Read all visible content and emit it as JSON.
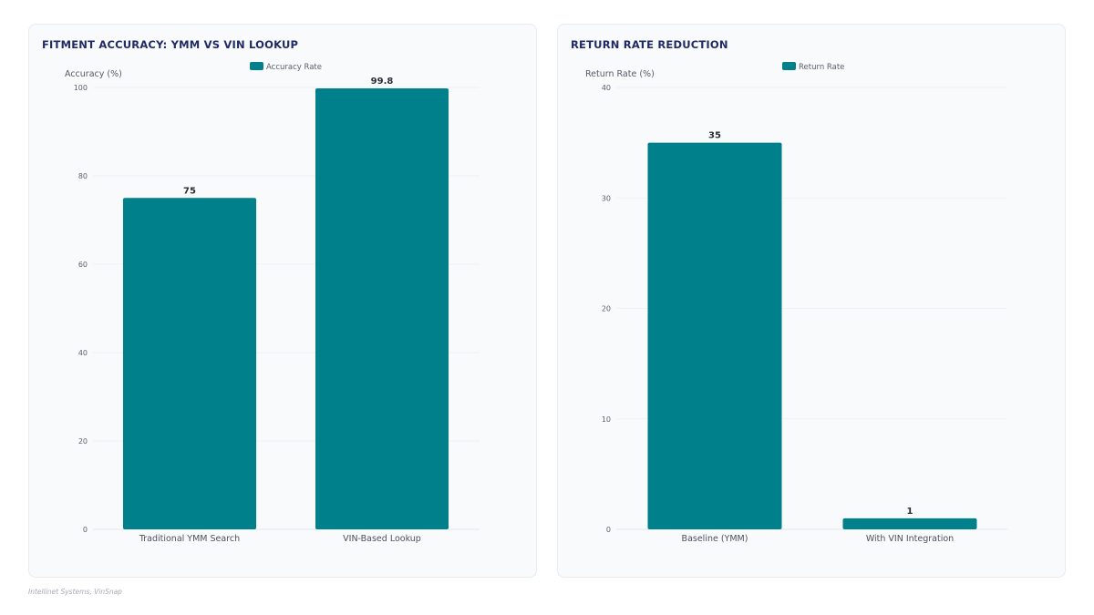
{
  "charts": [
    {
      "panel_title": "FITMENT ACCURACY: YMM VS VIN LOOKUP",
      "legend_label": "Accuracy Rate",
      "ylabel": "Accuracy (%)"
    },
    {
      "panel_title": "RETURN RATE REDUCTION",
      "legend_label": "Return Rate",
      "ylabel": "Return Rate (%)"
    }
  ],
  "chart_data": [
    {
      "type": "bar",
      "title": "FITMENT ACCURACY: YMM VS VIN LOOKUP",
      "xlabel": "",
      "ylabel": "Accuracy (%)",
      "categories": [
        "Traditional YMM Search",
        "VIN-Based Lookup"
      ],
      "series": [
        {
          "name": "Accuracy Rate",
          "values": [
            75,
            99.8
          ]
        }
      ],
      "value_labels": [
        "75",
        "99.8"
      ],
      "ylim": [
        0,
        100
      ],
      "yticks": [
        0,
        20,
        40,
        60,
        80,
        100
      ],
      "ytick_labels": [
        "0",
        "20",
        "40",
        "60",
        "80",
        "100"
      ],
      "grid": true,
      "legend": "top-center",
      "color": "#00808a"
    },
    {
      "type": "bar",
      "title": "RETURN RATE REDUCTION",
      "xlabel": "",
      "ylabel": "Return Rate (%)",
      "categories": [
        "Baseline (YMM)",
        "With VIN Integration"
      ],
      "series": [
        {
          "name": "Return Rate",
          "values": [
            35,
            1
          ]
        }
      ],
      "value_labels": [
        "35",
        "1"
      ],
      "ylim": [
        0,
        40
      ],
      "yticks": [
        0,
        10,
        20,
        30,
        40
      ],
      "ytick_labels": [
        "0",
        "10",
        "20",
        "30",
        "40"
      ],
      "grid": true,
      "legend": "top-center",
      "color": "#00808a"
    }
  ],
  "footer": {
    "source": "Intellinet Systems, VinSnap"
  }
}
